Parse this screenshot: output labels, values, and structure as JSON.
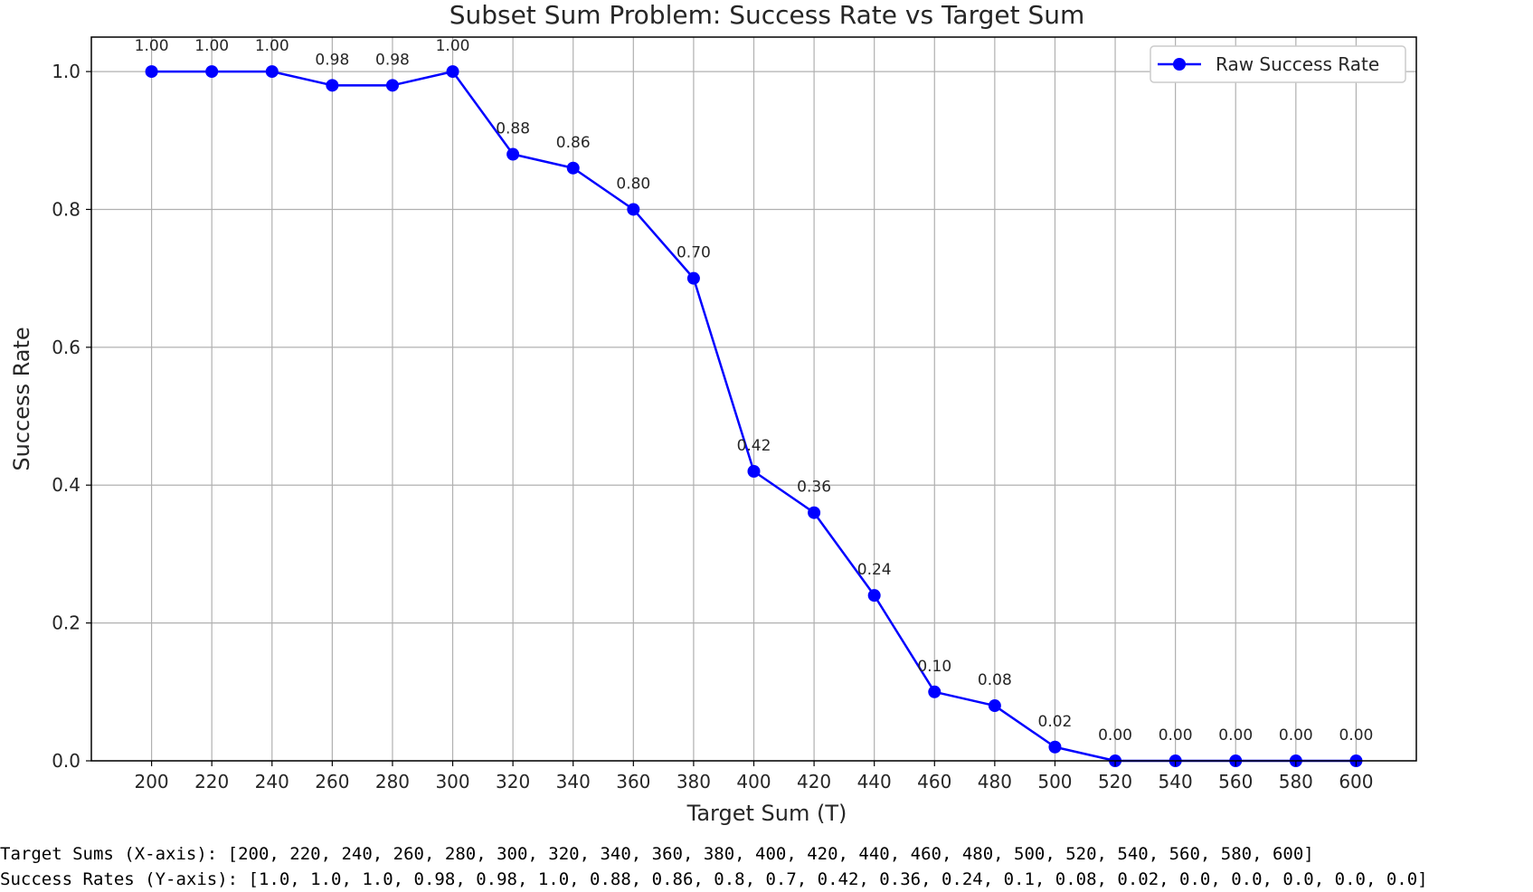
{
  "chart_data": {
    "type": "line",
    "title": "Subset Sum Problem: Success Rate vs Target Sum",
    "xlabel": "Target Sum (T)",
    "ylabel": "Success Rate",
    "x": [
      200,
      220,
      240,
      260,
      280,
      300,
      320,
      340,
      360,
      380,
      400,
      420,
      440,
      460,
      480,
      500,
      520,
      540,
      560,
      580,
      600
    ],
    "xlim": [
      180,
      620
    ],
    "ylim": [
      0.0,
      1.05
    ],
    "yticks": [
      0.0,
      0.2,
      0.4,
      0.6,
      0.8,
      1.0
    ],
    "ytick_labels": [
      "0.0",
      "0.2",
      "0.4",
      "0.6",
      "0.8",
      "1.0"
    ],
    "grid": true,
    "series": [
      {
        "name": "Raw Success Rate",
        "color": "#0000ff",
        "marker": "circle",
        "values": [
          1.0,
          1.0,
          1.0,
          0.98,
          0.98,
          1.0,
          0.88,
          0.86,
          0.8,
          0.7,
          0.42,
          0.36,
          0.24,
          0.1,
          0.08,
          0.02,
          0.0,
          0.0,
          0.0,
          0.0,
          0.0
        ],
        "data_labels": [
          "1.00",
          "1.00",
          "1.00",
          "0.98",
          "0.98",
          "1.00",
          "0.88",
          "0.86",
          "0.80",
          "0.70",
          "0.42",
          "0.36",
          "0.24",
          "0.10",
          "0.08",
          "0.02",
          "0.00",
          "0.00",
          "0.00",
          "0.00",
          "0.00"
        ]
      }
    ],
    "legend": {
      "position": "top-right",
      "label": "Raw Success Rate"
    }
  },
  "console": {
    "x_line": "Target Sums (X-axis): [200, 220, 240, 260, 280, 300, 320, 340, 360, 380, 400, 420, 440, 460, 480, 500, 520, 540, 560, 580, 600]",
    "y_line": "Success Rates (Y-axis): [1.0, 1.0, 1.0, 0.98, 0.98, 1.0, 0.88, 0.86, 0.8, 0.7, 0.42, 0.36, 0.24, 0.1, 0.08, 0.02, 0.0, 0.0, 0.0, 0.0, 0.0]"
  }
}
